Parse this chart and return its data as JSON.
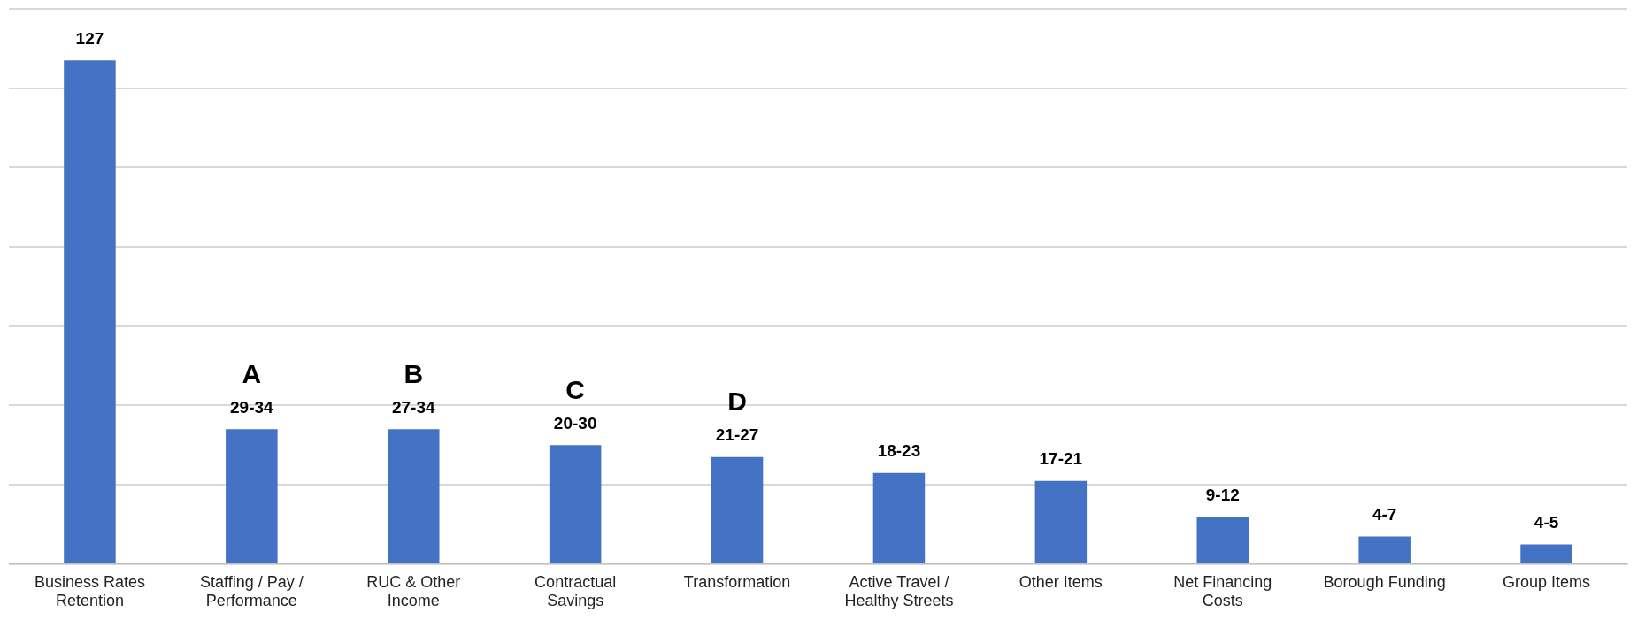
{
  "chart_data": {
    "type": "bar",
    "categories": [
      "Business Rates Retention",
      "Staffing / Pay / Performance",
      "RUC & Other Income",
      "Contractual Savings",
      "Transformation",
      "Active Travel / Healthy Streets",
      "Other Items",
      "Net Financing Costs",
      "Borough Funding",
      "Group Items"
    ],
    "values": [
      127,
      34,
      34,
      30,
      27,
      23,
      21,
      12,
      7,
      5
    ],
    "value_labels": [
      "127",
      "29-34",
      "27-34",
      "20-30",
      "21-27",
      "18-23",
      "17-21",
      "9-12",
      "4-7",
      "4-5"
    ],
    "color": "#4472c4",
    "ylim": [
      0,
      140
    ],
    "yticks": [
      {
        "value": 0,
        "label": null
      },
      {
        "value": 20,
        "label": null
      },
      {
        "value": 40,
        "label": null
      },
      {
        "value": 60,
        "label": null
      },
      {
        "value": 80,
        "label": null
      },
      {
        "value": 100,
        "label": null
      },
      {
        "value": 120,
        "label": null
      },
      {
        "value": 140,
        "label": null
      }
    ],
    "tick_labels": "x",
    "grid": "y",
    "legend": false,
    "annotations": [
      {
        "text": "A",
        "x": "Staffing / Pay / Performance",
        "y": 34
      },
      {
        "text": "B",
        "x": "RUC & Other Income",
        "y": 34
      },
      {
        "text": "C",
        "x": "Contractual Savings",
        "y": 30
      },
      {
        "text": "D",
        "x": "Transformation",
        "y": 27
      }
    ]
  }
}
